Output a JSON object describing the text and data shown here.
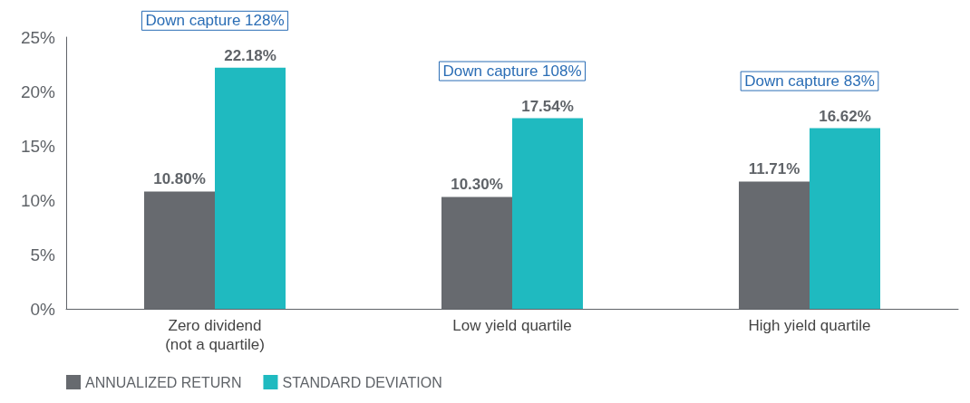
{
  "chart_data": {
    "type": "bar",
    "categories": [
      "Zero dividend\n(not a quartile)",
      "Low yield quartile",
      "High yield quartile"
    ],
    "series": [
      {
        "name": "ANNUALIZED RETURN",
        "color": "#676a6f",
        "values": [
          10.8,
          10.3,
          11.71
        ],
        "value_labels": [
          "10.80%",
          "10.30%",
          "11.71%"
        ]
      },
      {
        "name": "STANDARD DEVIATION",
        "color": "#1fbac0",
        "values": [
          22.18,
          17.54,
          16.62
        ],
        "value_labels": [
          "22.18%",
          "17.54%",
          "16.62%"
        ]
      }
    ],
    "ylim": [
      0,
      25
    ],
    "yticks": [
      {
        "value": 0,
        "label": "0%"
      },
      {
        "value": 5,
        "label": "5%"
      },
      {
        "value": 10,
        "label": "10%"
      },
      {
        "value": 15,
        "label": "15%"
      },
      {
        "value": 20,
        "label": "20%"
      },
      {
        "value": 25,
        "label": "25%"
      }
    ],
    "annotations": [
      "Down capture 128%",
      "Down capture 108%",
      "Down capture 83%"
    ],
    "legend": "bottom left",
    "grid": false
  }
}
